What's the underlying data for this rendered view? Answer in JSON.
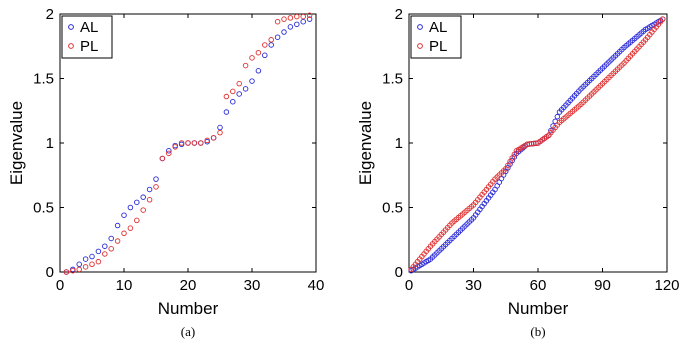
{
  "chart_data": [
    {
      "type": "scatter",
      "caption": "(a)",
      "xlabel": "Number",
      "ylabel": "Eigenvalue",
      "xlim": [
        0,
        40
      ],
      "ylim": [
        0,
        2
      ],
      "xticks": [
        "0",
        "10",
        "20",
        "30",
        "40"
      ],
      "yticks": [
        "0",
        "0.5",
        "1",
        "1.5",
        "2"
      ],
      "grid": false,
      "legend_position": "top-left",
      "series": [
        {
          "name": "AL",
          "color": "#2b2bd9",
          "marker": "circle",
          "x": [
            1,
            2,
            3,
            4,
            5,
            6,
            7,
            8,
            9,
            10,
            11,
            12,
            13,
            14,
            15,
            16,
            17,
            18,
            19,
            20,
            21,
            22,
            23,
            24,
            25,
            26,
            27,
            28,
            29,
            30,
            31,
            32,
            33,
            34,
            35,
            36,
            37,
            38,
            39
          ],
          "y": [
            0,
            0.02,
            0.06,
            0.1,
            0.12,
            0.16,
            0.2,
            0.26,
            0.36,
            0.44,
            0.5,
            0.54,
            0.58,
            0.64,
            0.72,
            0.88,
            0.94,
            0.98,
            0.99,
            1.0,
            1.0,
            1.0,
            1.01,
            1.04,
            1.12,
            1.24,
            1.32,
            1.38,
            1.42,
            1.48,
            1.56,
            1.68,
            1.76,
            1.82,
            1.86,
            1.9,
            1.92,
            1.94,
            1.96
          ]
        },
        {
          "name": "PL",
          "color": "#e03030",
          "marker": "circle",
          "x": [
            1,
            2,
            3,
            4,
            5,
            6,
            7,
            8,
            9,
            10,
            11,
            12,
            13,
            14,
            15,
            16,
            17,
            18,
            19,
            20,
            21,
            22,
            23,
            24,
            25,
            26,
            27,
            28,
            29,
            30,
            31,
            32,
            33,
            34,
            35,
            36,
            37,
            38,
            39
          ],
          "y": [
            0,
            0.01,
            0.02,
            0.04,
            0.06,
            0.08,
            0.14,
            0.18,
            0.24,
            0.3,
            0.34,
            0.4,
            0.48,
            0.56,
            0.66,
            0.88,
            0.92,
            0.97,
            1.0,
            1.0,
            1.0,
            1.0,
            1.02,
            1.04,
            1.08,
            1.36,
            1.4,
            1.46,
            1.6,
            1.66,
            1.7,
            1.76,
            1.8,
            1.94,
            1.96,
            1.97,
            1.98,
            1.98,
            1.99
          ]
        }
      ]
    },
    {
      "type": "scatter",
      "caption": "(b)",
      "xlabel": "Number",
      "ylabel": "Eigenvalue",
      "xlim": [
        0,
        120
      ],
      "ylim": [
        0,
        2
      ],
      "xticks": [
        "0",
        "30",
        "60",
        "90",
        "120"
      ],
      "yticks": [
        "0",
        "0.5",
        "1",
        "1.5",
        "2"
      ],
      "grid": false,
      "legend_position": "top-left",
      "series": [
        {
          "name": "AL",
          "color": "#2b2bd9",
          "marker": "circle",
          "curve_points": [
            [
              0,
              0
            ],
            [
              10,
              0.1
            ],
            [
              20,
              0.26
            ],
            [
              30,
              0.42
            ],
            [
              40,
              0.64
            ],
            [
              45,
              0.78
            ],
            [
              50,
              0.92
            ],
            [
              55,
              0.99
            ],
            [
              60,
              1.0
            ],
            [
              65,
              1.06
            ],
            [
              70,
              1.24
            ],
            [
              80,
              1.42
            ],
            [
              90,
              1.58
            ],
            [
              100,
              1.74
            ],
            [
              110,
              1.88
            ],
            [
              118,
              1.96
            ]
          ]
        },
        {
          "name": "PL",
          "color": "#e03030",
          "marker": "circle",
          "curve_points": [
            [
              0,
              0
            ],
            [
              10,
              0.2
            ],
            [
              20,
              0.38
            ],
            [
              30,
              0.52
            ],
            [
              40,
              0.72
            ],
            [
              45,
              0.8
            ],
            [
              50,
              0.94
            ],
            [
              55,
              0.99
            ],
            [
              60,
              1.0
            ],
            [
              65,
              1.06
            ],
            [
              70,
              1.16
            ],
            [
              80,
              1.3
            ],
            [
              90,
              1.46
            ],
            [
              100,
              1.62
            ],
            [
              110,
              1.8
            ],
            [
              118,
              1.96
            ]
          ]
        }
      ]
    }
  ]
}
